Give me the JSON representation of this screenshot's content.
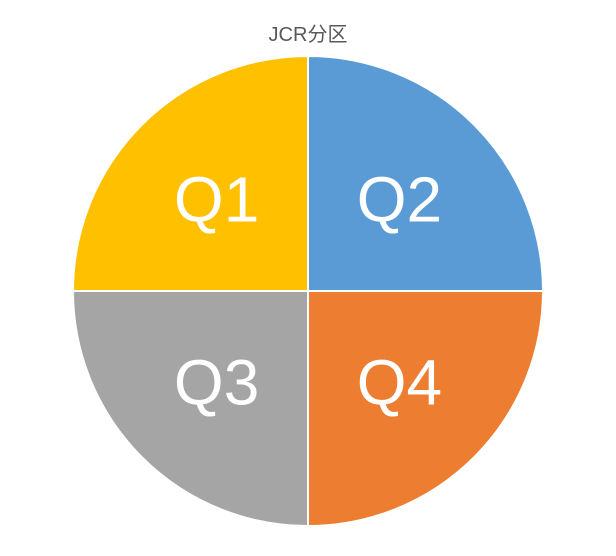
{
  "chart": {
    "type": "pie",
    "title": "JCR分区",
    "title_fontsize": 20,
    "title_color": "#595959",
    "background_color": "#ffffff",
    "diameter": 470,
    "gap_width": 2,
    "label_fontsize": 64,
    "label_color": "#ffffff",
    "label_fontweight": 300,
    "slices": [
      {
        "label": "Q1",
        "value": 25,
        "color": "#ffc000",
        "start_angle": 270,
        "end_angle": 360
      },
      {
        "label": "Q2",
        "value": 25,
        "color": "#5b9bd5",
        "start_angle": 0,
        "end_angle": 90
      },
      {
        "label": "Q3",
        "value": 25,
        "color": "#a5a5a5",
        "start_angle": 180,
        "end_angle": 270
      },
      {
        "label": "Q4",
        "value": 25,
        "color": "#ed7d31",
        "start_angle": 90,
        "end_angle": 180
      }
    ]
  }
}
